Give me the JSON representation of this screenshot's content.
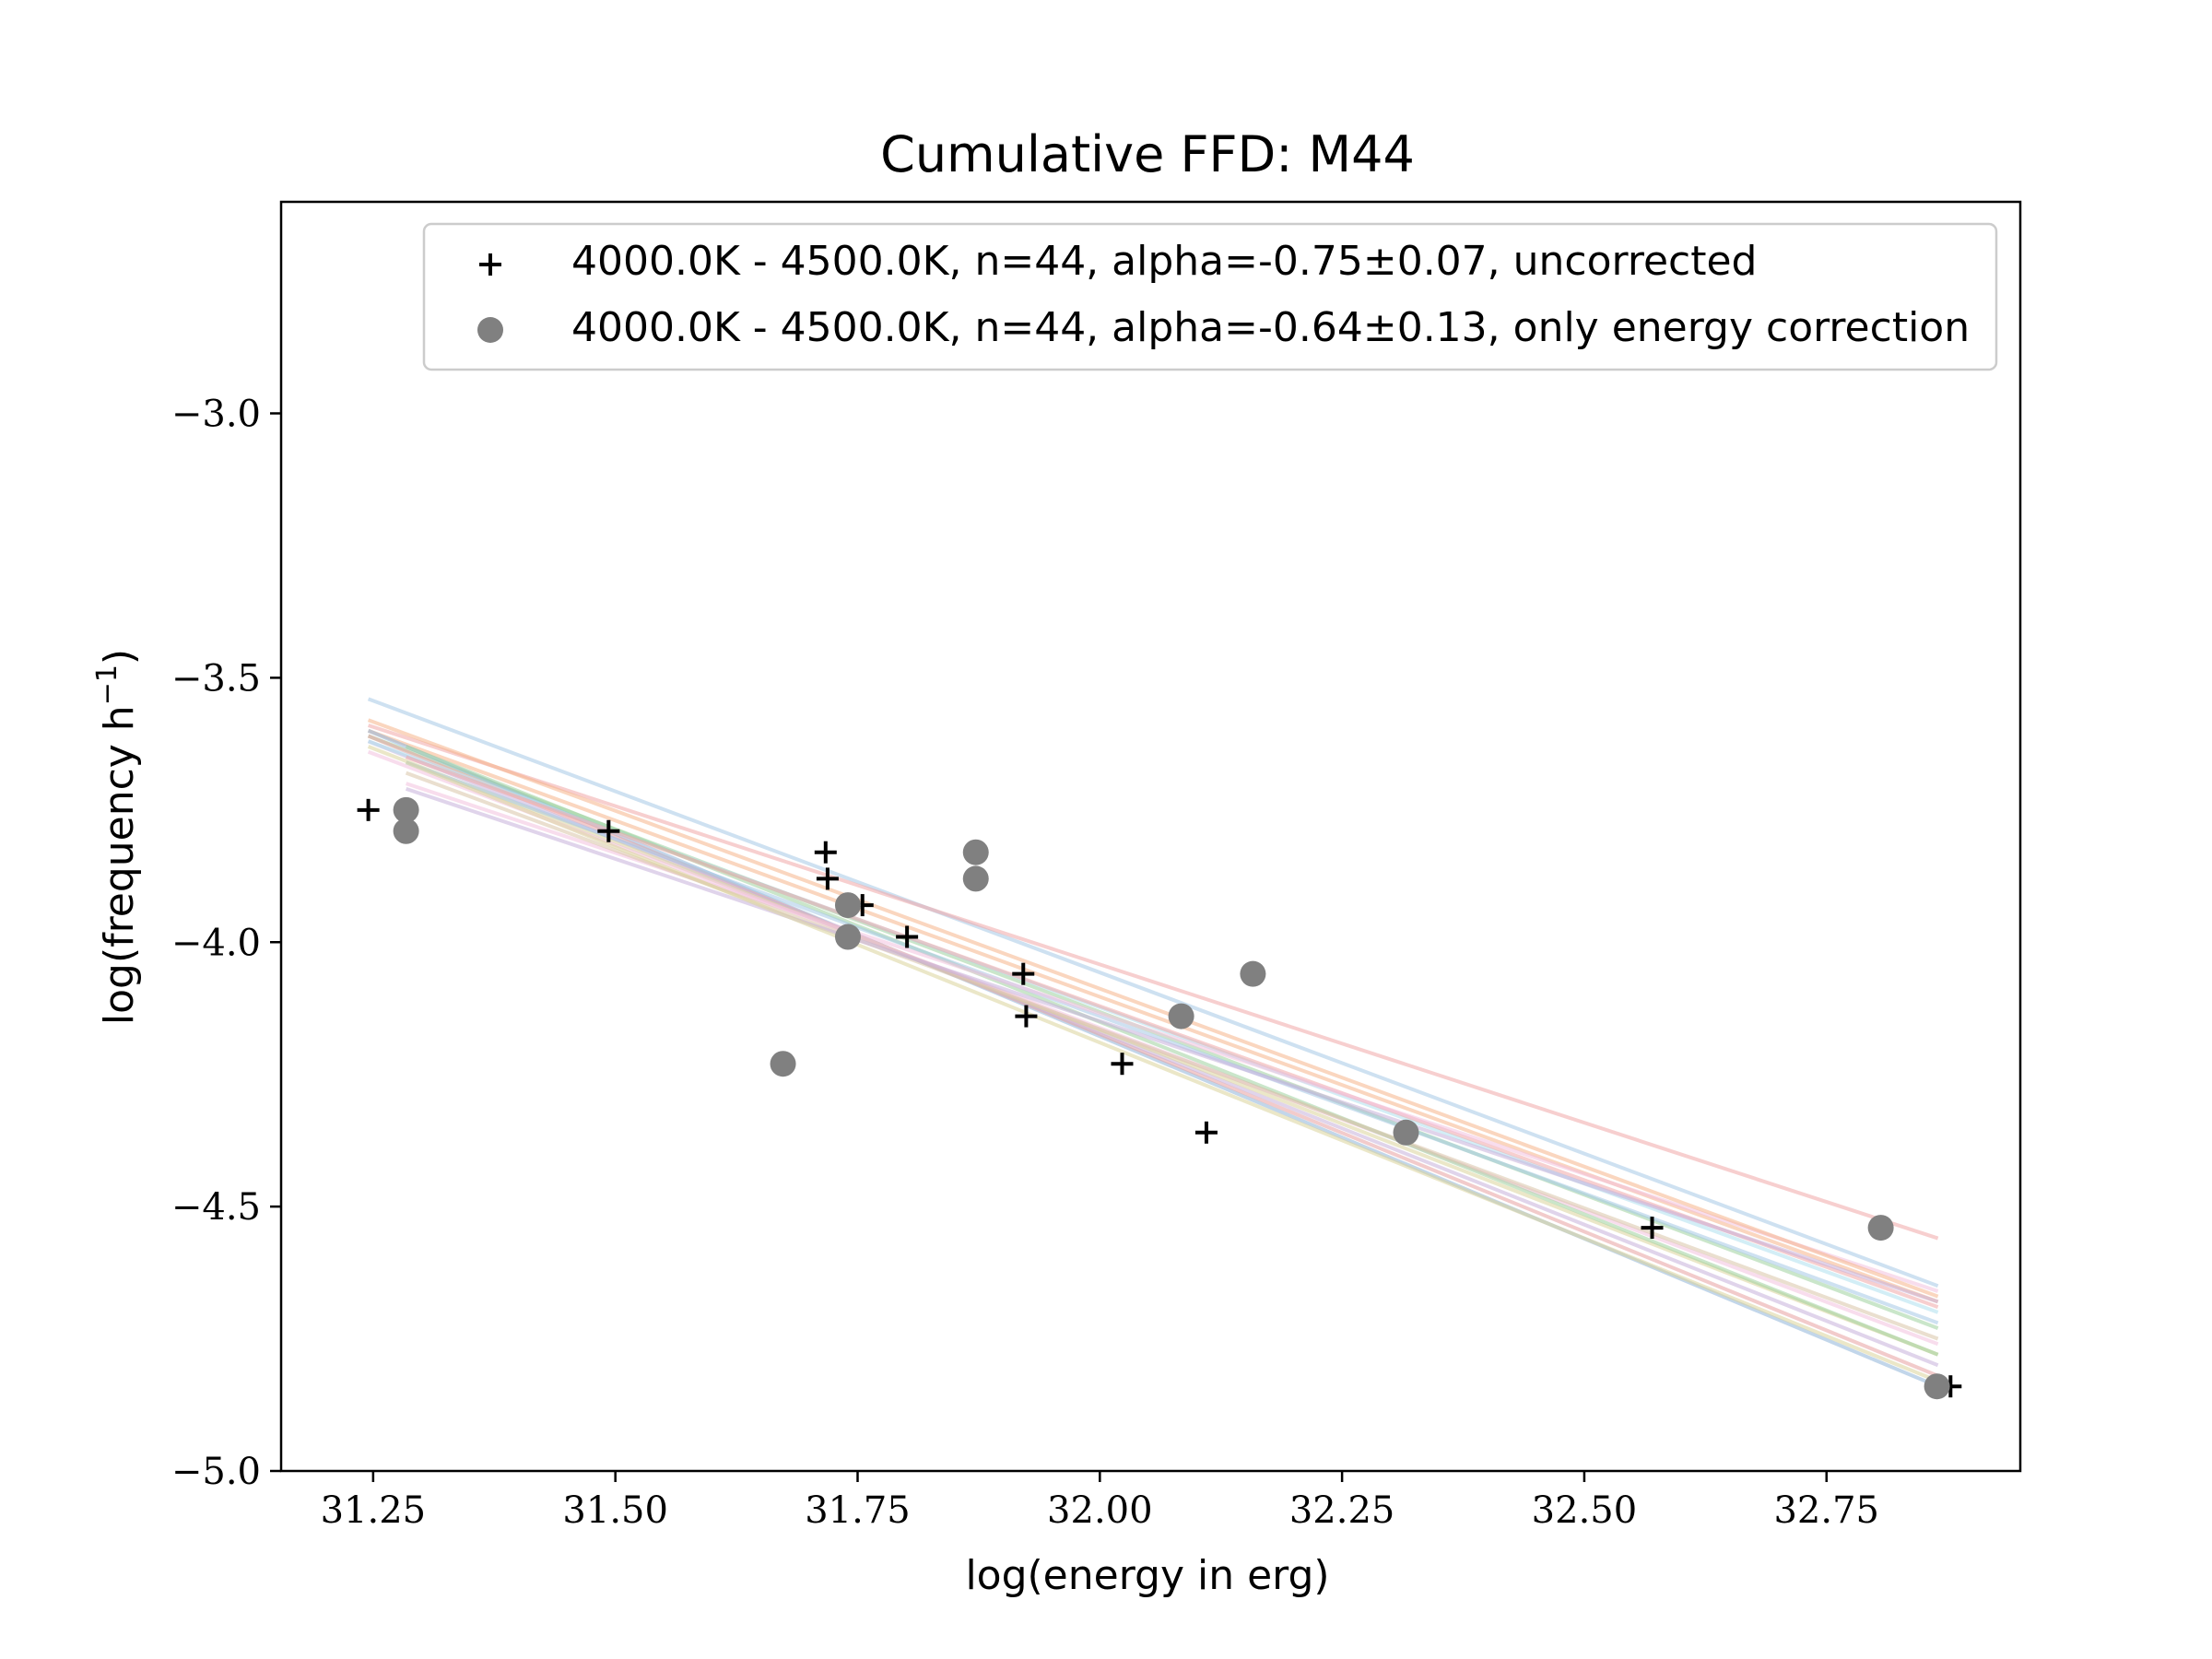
{
  "chart_data": {
    "type": "scatter",
    "title": "Cumulative FFD: M44",
    "xlabel": "log(energy in erg)",
    "ylabel_main": "log(frequency h",
    "ylabel_sup": "−1",
    "ylabel_close": ")",
    "xlim": [
      31.155,
      32.95
    ],
    "ylim": [
      -5.0,
      -2.6
    ],
    "xticks": [
      {
        "value": 31.25,
        "label": "31.25"
      },
      {
        "value": 31.5,
        "label": "31.50"
      },
      {
        "value": 31.75,
        "label": "31.75"
      },
      {
        "value": 32.0,
        "label": "32.00"
      },
      {
        "value": 32.25,
        "label": "32.25"
      },
      {
        "value": 32.5,
        "label": "32.50"
      },
      {
        "value": 32.75,
        "label": "32.75"
      }
    ],
    "yticks": [
      {
        "value": -3.0,
        "label": "−3.0"
      },
      {
        "value": -3.5,
        "label": "−3.5"
      },
      {
        "value": -4.0,
        "label": "−4.0"
      },
      {
        "value": -4.5,
        "label": "−4.5"
      },
      {
        "value": -5.0,
        "label": "−5.0"
      }
    ],
    "grid": false,
    "legend_position": "top-right",
    "series": [
      {
        "name": "4000.0K - 4500.0K, n=44, alpha=-0.75±0.07, uncorrected",
        "marker": "plus",
        "color": "#000000",
        "points": [
          [
            31.245,
            -3.75
          ],
          [
            31.493,
            -3.79
          ],
          [
            31.717,
            -3.83
          ],
          [
            31.719,
            -3.88
          ],
          [
            31.755,
            -3.93
          ],
          [
            31.801,
            -3.99
          ],
          [
            31.921,
            -4.06
          ],
          [
            31.924,
            -4.14
          ],
          [
            32.023,
            -4.23
          ],
          [
            32.11,
            -4.36
          ],
          [
            32.57,
            -4.54
          ],
          [
            32.878,
            -4.84
          ]
        ]
      },
      {
        "name": "4000.0K - 4500.0K, n=44, alpha=-0.64±0.13, only energy correction",
        "marker": "circle",
        "color": "#808080",
        "points": [
          [
            31.284,
            -3.75
          ],
          [
            31.284,
            -3.79
          ],
          [
            31.673,
            -4.23
          ],
          [
            31.74,
            -3.93
          ],
          [
            31.74,
            -3.99
          ],
          [
            31.872,
            -3.83
          ],
          [
            31.872,
            -3.88
          ],
          [
            32.084,
            -4.14
          ],
          [
            32.158,
            -4.06
          ],
          [
            32.316,
            -4.36
          ],
          [
            32.806,
            -4.54
          ],
          [
            32.864,
            -4.84
          ]
        ]
      }
    ],
    "fit_lines": [
      {
        "color": "#a6c8e6",
        "x1": 31.245,
        "y1": -3.54,
        "x2": 32.865,
        "y2": -4.65
      },
      {
        "color": "#f0a8a8",
        "x1": 31.245,
        "y1": -3.59,
        "x2": 32.865,
        "y2": -4.56
      },
      {
        "color": "#f5b58a",
        "x1": 31.245,
        "y1": -3.6,
        "x2": 32.865,
        "y2": -4.68
      },
      {
        "color": "#9fd29f",
        "x1": 31.245,
        "y1": -3.61,
        "x2": 32.865,
        "y2": -4.73
      },
      {
        "color": "#8fb4d8",
        "x1": 31.245,
        "y1": -3.6,
        "x2": 32.865,
        "y2": -4.84
      },
      {
        "color": "#e8a0a0",
        "x1": 31.245,
        "y1": -3.61,
        "x2": 32.865,
        "y2": -4.82
      },
      {
        "color": "#c6b0da",
        "x1": 31.245,
        "y1": -3.62,
        "x2": 32.865,
        "y2": -4.8
      },
      {
        "color": "#dbd49a",
        "x1": 31.245,
        "y1": -3.63,
        "x2": 32.865,
        "y2": -4.78
      },
      {
        "color": "#f3c1de",
        "x1": 31.245,
        "y1": -3.64,
        "x2": 32.865,
        "y2": -4.76
      },
      {
        "color": "#aee0ee",
        "x1": 31.245,
        "y1": -3.62,
        "x2": 32.865,
        "y2": -4.7
      },
      {
        "color": "#9fd29f",
        "x1": 31.284,
        "y1": -3.63,
        "x2": 32.865,
        "y2": -4.78
      },
      {
        "color": "#f0a8a8",
        "x1": 31.284,
        "y1": -3.65,
        "x2": 32.865,
        "y2": -4.69
      },
      {
        "color": "#a6c8e6",
        "x1": 31.284,
        "y1": -3.66,
        "x2": 32.865,
        "y2": -4.72
      },
      {
        "color": "#f3c1de",
        "x1": 31.284,
        "y1": -3.7,
        "x2": 32.865,
        "y2": -4.66
      },
      {
        "color": "#d9c5a8",
        "x1": 31.284,
        "y1": -3.68,
        "x2": 32.865,
        "y2": -4.75
      },
      {
        "color": "#c6b0da",
        "x1": 31.284,
        "y1": -3.71,
        "x2": 32.865,
        "y2": -4.68
      },
      {
        "color": "#f5b58a",
        "x1": 31.245,
        "y1": -3.58,
        "x2": 32.865,
        "y2": -4.67
      },
      {
        "color": "#dbd49a",
        "x1": 31.284,
        "y1": -3.66,
        "x2": 32.865,
        "y2": -4.83
      }
    ]
  }
}
